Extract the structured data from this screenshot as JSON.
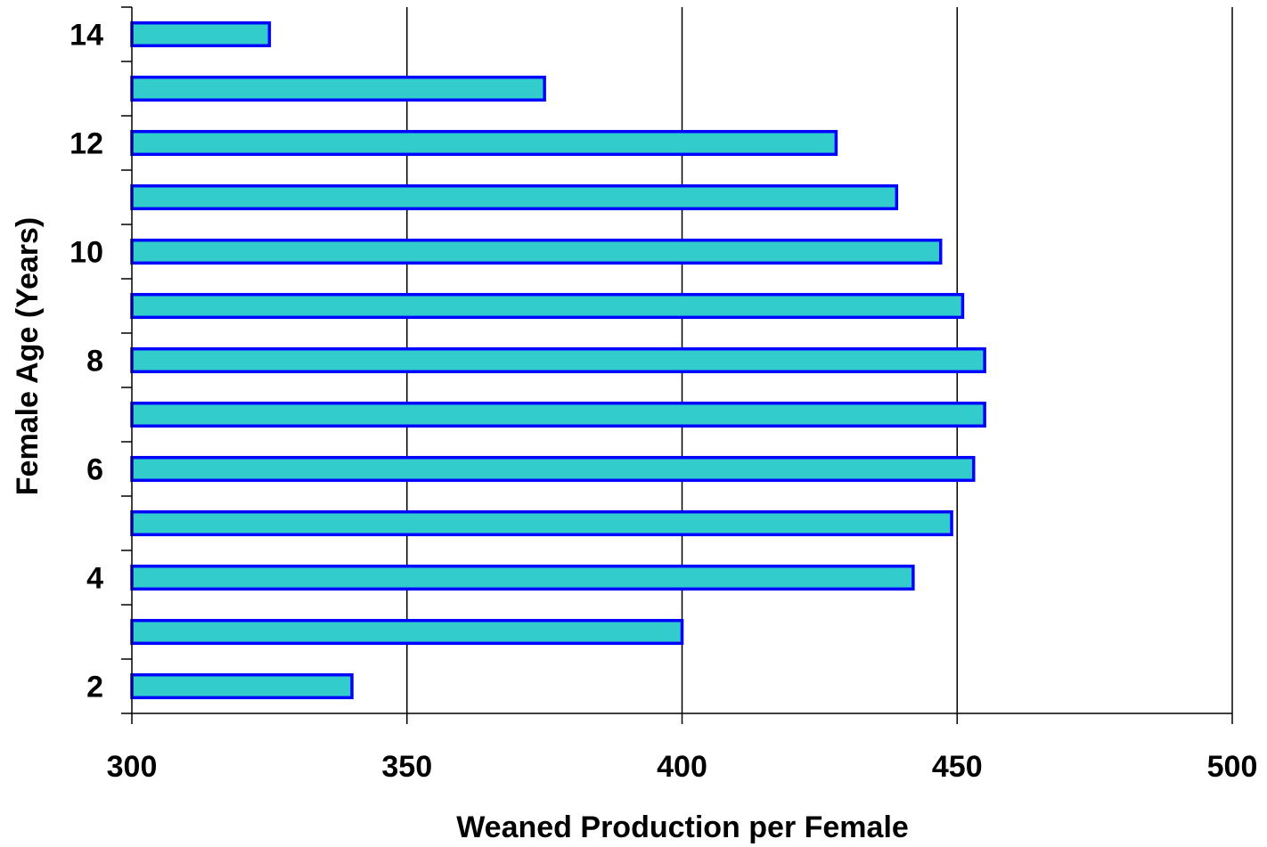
{
  "chart_data": {
    "type": "bar",
    "orientation": "horizontal",
    "title": "",
    "xlabel": "Weaned Production per Female",
    "ylabel": "Female Age (Years)",
    "xlim": [
      300,
      500
    ],
    "x_ticks": [
      300,
      350,
      400,
      450,
      500
    ],
    "categories": [
      2,
      3,
      4,
      5,
      6,
      7,
      8,
      9,
      10,
      11,
      12,
      13,
      14
    ],
    "y_tick_labels": [
      "2",
      "",
      "4",
      "",
      "6",
      "",
      "8",
      "",
      "10",
      "",
      "12",
      "",
      "14"
    ],
    "values": [
      340,
      400,
      442,
      449,
      453,
      455,
      455,
      451,
      447,
      439,
      428,
      375,
      325
    ],
    "grid": "vertical major gridlines",
    "legend": "none",
    "colors": {
      "bar_fill": "#33CCCC",
      "bar_stroke": "#0000FF",
      "gridline": "#000000",
      "axis": "#000000"
    }
  }
}
